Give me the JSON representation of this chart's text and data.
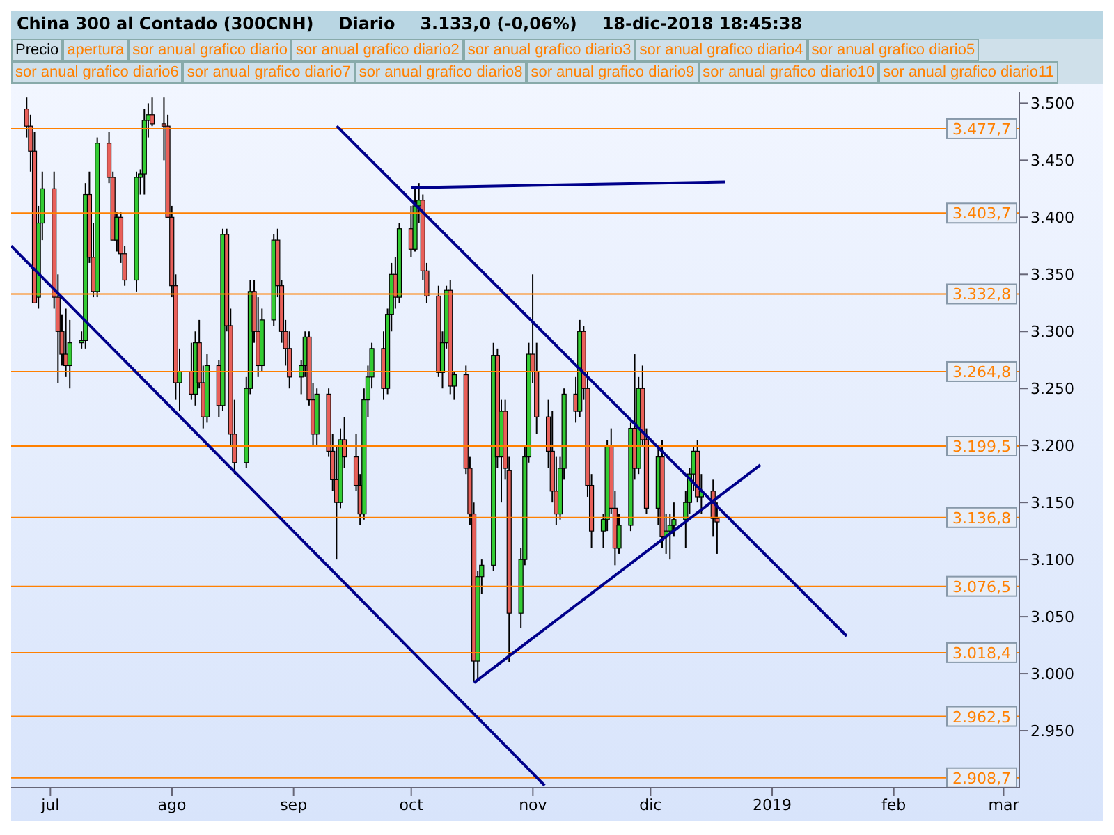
{
  "chart_data": {
    "type": "candlestick",
    "title": "China 300 al Contado (300CNH)",
    "annotations": [
      "Diario",
      "3.133,0 (-0,06%)",
      "18-dic-2018 18:45:38",
      "Precio",
      "apertura",
      "sor anual grafico diario",
      "sor anual grafico diario2",
      "sor anual grafico diario3",
      "sor anual grafico diario4",
      "sor anual grafico diario5",
      "sor anual grafico diario6",
      "sor anual grafico diario7",
      "sor anual grafico diario8",
      "sor anual grafico diario9",
      "sor anual grafico diario10",
      "sor anual grafico diario11"
    ],
    "x": [
      "2018-06-25",
      "2018-06-26",
      "2018-06-27",
      "2018-06-28",
      "2018-06-29",
      "2018-07-02",
      "2018-07-03",
      "2018-07-04",
      "2018-07-05",
      "2018-07-06",
      "2018-07-09",
      "2018-07-10",
      "2018-07-11",
      "2018-07-12",
      "2018-07-13",
      "2018-07-16",
      "2018-07-17",
      "2018-07-18",
      "2018-07-19",
      "2018-07-20",
      "2018-07-23",
      "2018-07-24",
      "2018-07-25",
      "2018-07-26",
      "2018-07-27",
      "2018-07-30",
      "2018-07-31",
      "2018-08-01",
      "2018-08-02",
      "2018-08-03",
      "2018-08-06",
      "2018-08-07",
      "2018-08-08",
      "2018-08-09",
      "2018-08-10",
      "2018-08-13",
      "2018-08-14",
      "2018-08-15",
      "2018-08-16",
      "2018-08-17",
      "2018-08-20",
      "2018-08-21",
      "2018-08-22",
      "2018-08-23",
      "2018-08-24",
      "2018-08-27",
      "2018-08-28",
      "2018-08-29",
      "2018-08-30",
      "2018-08-31",
      "2018-09-03",
      "2018-09-04",
      "2018-09-05",
      "2018-09-06",
      "2018-09-07",
      "2018-09-10",
      "2018-09-11",
      "2018-09-12",
      "2018-09-13",
      "2018-09-14",
      "2018-09-17",
      "2018-09-18",
      "2018-09-19",
      "2018-09-20",
      "2018-09-21",
      "2018-09-24",
      "2018-09-25",
      "2018-09-26",
      "2018-09-27",
      "2018-09-28",
      "2018-10-01",
      "2018-10-02",
      "2018-10-03",
      "2018-10-04",
      "2018-10-05",
      "2018-10-08",
      "2018-10-09",
      "2018-10-10",
      "2018-10-11",
      "2018-10-12",
      "2018-10-15",
      "2018-10-16",
      "2018-10-17",
      "2018-10-18",
      "2018-10-19",
      "2018-10-22",
      "2018-10-23",
      "2018-10-24",
      "2018-10-25",
      "2018-10-26",
      "2018-10-29",
      "2018-10-30",
      "2018-10-31",
      "2018-11-01",
      "2018-11-02",
      "2018-11-05",
      "2018-11-06",
      "2018-11-07",
      "2018-11-08",
      "2018-11-09",
      "2018-11-12",
      "2018-11-13",
      "2018-11-14",
      "2018-11-15",
      "2018-11-16",
      "2018-11-19",
      "2018-11-20",
      "2018-11-21",
      "2018-11-22",
      "2018-11-23",
      "2018-11-26",
      "2018-11-27",
      "2018-11-28",
      "2018-11-29",
      "2018-11-30",
      "2018-12-03",
      "2018-12-04",
      "2018-12-05",
      "2018-12-06",
      "2018-12-07",
      "2018-12-10",
      "2018-12-11",
      "2018-12-12",
      "2018-12-13",
      "2018-12-14",
      "2018-12-17",
      "2018-12-18"
    ],
    "ohlc": [
      [
        3495,
        3505,
        3470,
        3480
      ],
      [
        3480,
        3490,
        3440,
        3458
      ],
      [
        3458,
        3475,
        3325,
        3325
      ],
      [
        3330,
        3410,
        3320,
        3395
      ],
      [
        3395,
        3440,
        3380,
        3425
      ],
      [
        3425,
        3440,
        3320,
        3330
      ],
      [
        3330,
        3350,
        3255,
        3300
      ],
      [
        3300,
        3315,
        3270,
        3280
      ],
      [
        3280,
        3320,
        3260,
        3270
      ],
      [
        3270,
        3310,
        3250,
        3290
      ],
      [
        3290,
        3300,
        3285,
        3292
      ],
      [
        3292,
        3430,
        3285,
        3420
      ],
      [
        3420,
        3440,
        3360,
        3365
      ],
      [
        3365,
        3395,
        3330,
        3335
      ],
      [
        3335,
        3470,
        3330,
        3465
      ],
      [
        3465,
        3475,
        3430,
        3435
      ],
      [
        3435,
        3440,
        3380,
        3380
      ],
      [
        3380,
        3405,
        3370,
        3400
      ],
      [
        3400,
        3405,
        3360,
        3368
      ],
      [
        3368,
        3375,
        3340,
        3345
      ],
      [
        3345,
        3440,
        3335,
        3435
      ],
      [
        3435,
        3442,
        3420,
        3438
      ],
      [
        3438,
        3495,
        3420,
        3485
      ],
      [
        3485,
        3500,
        3470,
        3490
      ],
      [
        3490,
        3505,
        3480,
        3482
      ],
      [
        3482,
        3505,
        3450,
        3480
      ],
      [
        3480,
        3490,
        3400,
        3400
      ],
      [
        3400,
        3410,
        3330,
        3340
      ],
      [
        3340,
        3350,
        3240,
        3255
      ],
      [
        3255,
        3285,
        3230,
        3265
      ],
      [
        3265,
        3290,
        3240,
        3245
      ],
      [
        3245,
        3300,
        3235,
        3290
      ],
      [
        3290,
        3310,
        3250,
        3255
      ],
      [
        3255,
        3270,
        3215,
        3225
      ],
      [
        3225,
        3280,
        3220,
        3270
      ],
      [
        3270,
        3275,
        3225,
        3235
      ],
      [
        3235,
        3390,
        3230,
        3385
      ],
      [
        3385,
        3390,
        3300,
        3305
      ],
      [
        3305,
        3320,
        3200,
        3210
      ],
      [
        3210,
        3240,
        3175,
        3185
      ],
      [
        3185,
        3260,
        3180,
        3250
      ],
      [
        3250,
        3345,
        3245,
        3335
      ],
      [
        3335,
        3345,
        3290,
        3300
      ],
      [
        3300,
        3330,
        3260,
        3270
      ],
      [
        3270,
        3320,
        3265,
        3310
      ],
      [
        3310,
        3385,
        3305,
        3380
      ],
      [
        3380,
        3390,
        3330,
        3340
      ],
      [
        3340,
        3345,
        3290,
        3300
      ],
      [
        3300,
        3310,
        3270,
        3285
      ],
      [
        3285,
        3300,
        3250,
        3260
      ],
      [
        3260,
        3275,
        3245,
        3270
      ],
      [
        3270,
        3300,
        3260,
        3295
      ],
      [
        3295,
        3300,
        3235,
        3240
      ],
      [
        3240,
        3255,
        3200,
        3210
      ],
      [
        3210,
        3250,
        3200,
        3245
      ],
      [
        3245,
        3250,
        3190,
        3195
      ],
      [
        3195,
        3210,
        3160,
        3170
      ],
      [
        3170,
        3200,
        3100,
        3150
      ],
      [
        3150,
        3215,
        3145,
        3205
      ],
      [
        3205,
        3225,
        3180,
        3190
      ],
      [
        3190,
        3210,
        3160,
        3165
      ],
      [
        3165,
        3175,
        3130,
        3140
      ],
      [
        3140,
        3250,
        3135,
        3240
      ],
      [
        3240,
        3270,
        3225,
        3260
      ],
      [
        3260,
        3290,
        3250,
        3285
      ],
      [
        3285,
        3300,
        3240,
        3250
      ],
      [
        3250,
        3320,
        3245,
        3315
      ],
      [
        3315,
        3360,
        3300,
        3350
      ],
      [
        3350,
        3365,
        3320,
        3330
      ],
      [
        3330,
        3395,
        3325,
        3390
      ],
      [
        3390,
        3410,
        3365,
        3372
      ],
      [
        3372,
        3425,
        3370,
        3410
      ],
      [
        3410,
        3430,
        3395,
        3415
      ],
      [
        3415,
        3420,
        3345,
        3353
      ],
      [
        3353,
        3360,
        3325,
        3331
      ],
      [
        3331,
        3340,
        3260,
        3264
      ],
      [
        3264,
        3300,
        3250,
        3290
      ],
      [
        3290,
        3340,
        3285,
        3336
      ],
      [
        3336,
        3345,
        3245,
        3252
      ],
      [
        3252,
        3265,
        3240,
        3262
      ],
      [
        3262,
        3270,
        3175,
        3180
      ],
      [
        3180,
        3190,
        3130,
        3140
      ],
      [
        3140,
        3150,
        2993,
        3011
      ],
      [
        3011,
        3090,
        2995,
        3085
      ],
      [
        3085,
        3100,
        3070,
        3095
      ],
      [
        3095,
        3290,
        3090,
        3279
      ],
      [
        3279,
        3285,
        3180,
        3190
      ],
      [
        3190,
        3240,
        3150,
        3230
      ],
      [
        3230,
        3240,
        3170,
        3180
      ],
      [
        3178,
        3190,
        3010,
        3053
      ],
      [
        3053,
        3110,
        3040,
        3100
      ],
      [
        3100,
        3200,
        3095,
        3190
      ],
      [
        3190,
        3290,
        3185,
        3280
      ],
      [
        3280,
        3350,
        3255,
        3265
      ],
      [
        3265,
        3290,
        3210,
        3225
      ],
      [
        3225,
        3240,
        3180,
        3195
      ],
      [
        3195,
        3230,
        3150,
        3160
      ],
      [
        3160,
        3190,
        3130,
        3140
      ],
      [
        3140,
        3190,
        3135,
        3180
      ],
      [
        3180,
        3250,
        3170,
        3245
      ],
      [
        3245,
        3260,
        3220,
        3230
      ],
      [
        3230,
        3310,
        3225,
        3300
      ],
      [
        3300,
        3305,
        3240,
        3250
      ],
      [
        3250,
        3265,
        3155,
        3165
      ],
      [
        3165,
        3175,
        3110,
        3125
      ],
      [
        3125,
        3140,
        3110,
        3135
      ],
      [
        3135,
        3205,
        3125,
        3200
      ],
      [
        3200,
        3215,
        3140,
        3145
      ],
      [
        3145,
        3160,
        3095,
        3110
      ],
      [
        3110,
        3140,
        3105,
        3130
      ],
      [
        3130,
        3220,
        3125,
        3215
      ],
      [
        3215,
        3280,
        3170,
        3180
      ],
      [
        3180,
        3260,
        3175,
        3250
      ],
      [
        3250,
        3270,
        3200,
        3205
      ],
      [
        3205,
        3215,
        3140,
        3145
      ],
      [
        3145,
        3200,
        3130,
        3190
      ],
      [
        3190,
        3205,
        3110,
        3120
      ],
      [
        3120,
        3140,
        3105,
        3125
      ],
      [
        3125,
        3140,
        3100,
        3130
      ],
      [
        3130,
        3150,
        3120,
        3135
      ],
      [
        3135,
        3160,
        3110,
        3150
      ],
      [
        3150,
        3180,
        3140,
        3175
      ],
      [
        3175,
        3200,
        3160,
        3195
      ],
      [
        3195,
        3205,
        3150,
        3155
      ],
      [
        3155,
        3175,
        3140,
        3160
      ],
      [
        3160,
        3170,
        3120,
        3136
      ],
      [
        3136,
        3150,
        3105,
        3133
      ]
    ],
    "series": [
      {
        "type": "line",
        "color": "#00008b",
        "x": [
          "2018-06-21",
          "2018-11-04"
        ],
        "values": [
          3375,
          2902
        ]
      },
      {
        "type": "line",
        "color": "#00008b",
        "x": [
          "2018-09-12",
          "2019-01-20"
        ],
        "values": [
          3480,
          3033
        ]
      },
      {
        "type": "line",
        "color": "#00008b",
        "x": [
          "2018-10-01",
          "2018-12-20"
        ],
        "values": [
          3426,
          3431
        ]
      },
      {
        "type": "line",
        "color": "#00008b",
        "x": [
          "2018-10-17",
          "2018-12-29"
        ],
        "values": [
          2992,
          3183
        ]
      }
    ],
    "ref_lines": [
      {
        "axis": "y",
        "value": 3477.7,
        "label": "3.477,7",
        "color": "#ff8000"
      },
      {
        "axis": "y",
        "value": 3403.7,
        "label": "3.403,7",
        "color": "#ff8000"
      },
      {
        "axis": "y",
        "value": 3332.8,
        "label": "3.332,8",
        "color": "#ff8000"
      },
      {
        "axis": "y",
        "value": 3264.8,
        "label": "3.264,8",
        "color": "#ff8000"
      },
      {
        "axis": "y",
        "value": 3199.5,
        "label": "3.199,5",
        "color": "#ff8000"
      },
      {
        "axis": "y",
        "value": 3136.8,
        "label": "3.136,8",
        "color": "#ff8000"
      },
      {
        "axis": "y",
        "value": 3076.5,
        "label": "3.076,5",
        "color": "#ff8000"
      },
      {
        "axis": "y",
        "value": 3018.4,
        "label": "3.018,4",
        "color": "#ff8000"
      },
      {
        "axis": "y",
        "value": 2962.5,
        "label": "2.962,5",
        "color": "#ff8000"
      },
      {
        "axis": "y",
        "value": 2908.7,
        "label": "2.908,7",
        "color": "#ff8000"
      }
    ],
    "xlim": [
      "2018-06-21",
      "2019-03-05"
    ],
    "xticks": [
      {
        "value": "2018-07-01",
        "label": "jul"
      },
      {
        "value": "2018-08-01",
        "label": "ago"
      },
      {
        "value": "2018-09-01",
        "label": "sep"
      },
      {
        "value": "2018-10-01",
        "label": "oct"
      },
      {
        "value": "2018-11-01",
        "label": "nov"
      },
      {
        "value": "2018-12-01",
        "label": "dic"
      },
      {
        "value": "2019-01-01",
        "label": "2019"
      },
      {
        "value": "2019-02-01",
        "label": "feb"
      },
      {
        "value": "2019-03-01",
        "label": "mar"
      }
    ],
    "ylim": [
      2900,
      3510
    ],
    "yticks": [
      {
        "value": 2950,
        "label": "2.950"
      },
      {
        "value": 3000,
        "label": "3.000"
      },
      {
        "value": 3050,
        "label": "3.050"
      },
      {
        "value": 3100,
        "label": "3.100"
      },
      {
        "value": 3150,
        "label": "3.150"
      },
      {
        "value": 3200,
        "label": "3.200"
      },
      {
        "value": 3250,
        "label": "3.250"
      },
      {
        "value": 3300,
        "label": "3.300"
      },
      {
        "value": 3350,
        "label": "3.350"
      },
      {
        "value": 3400,
        "label": "3.400"
      },
      {
        "value": 3450,
        "label": "3.450"
      },
      {
        "value": 3500,
        "label": "3.500"
      }
    ],
    "legend": false
  }
}
